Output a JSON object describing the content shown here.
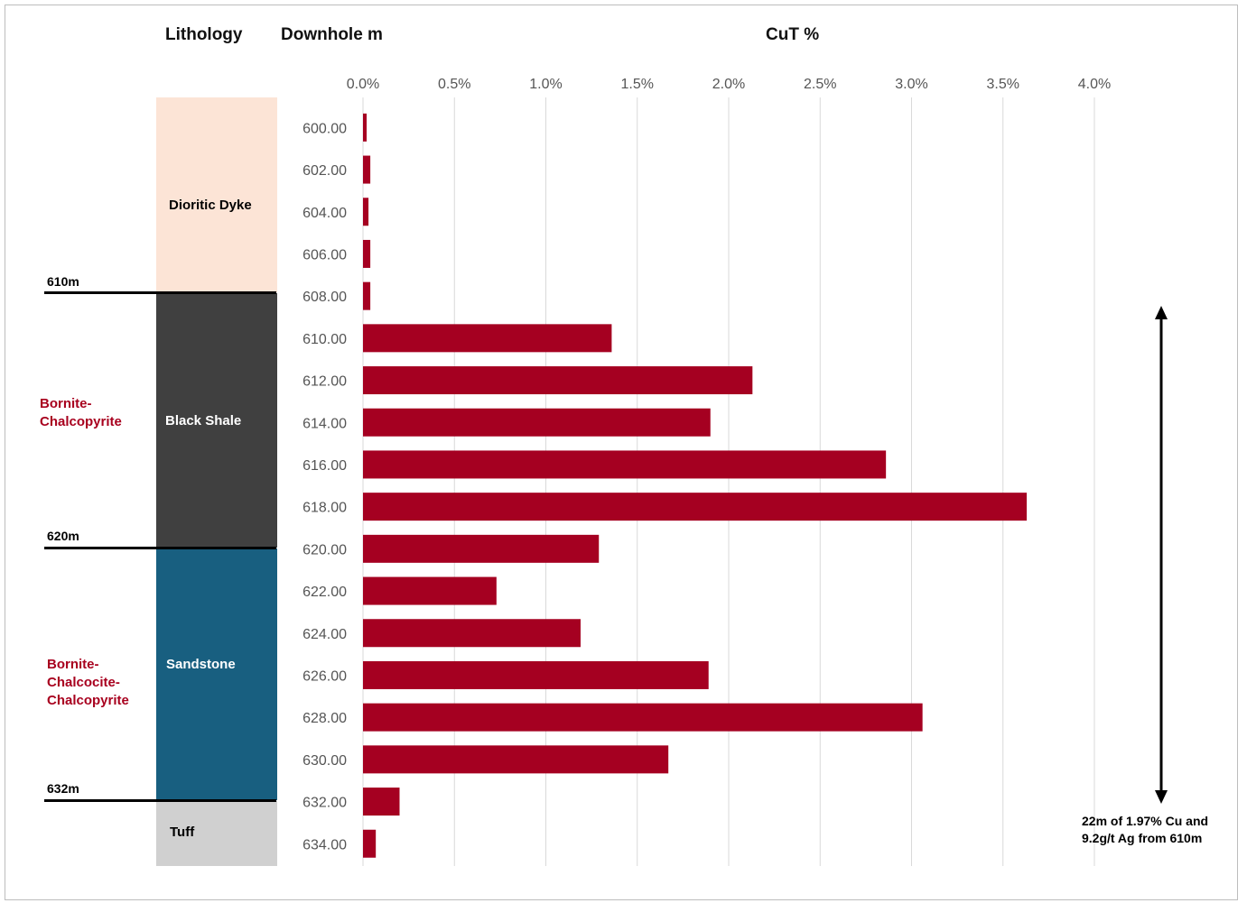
{
  "headers": {
    "lithology": "Lithology",
    "downhole": "Downhole m",
    "cut": "CuT %"
  },
  "lithology_units": [
    {
      "name": "Dioritic Dyke",
      "color": "#fce4d6",
      "text_color": "#000000"
    },
    {
      "name": "Black Shale",
      "color": "#404040",
      "text_color": "#ffffff"
    },
    {
      "name": "Sandstone",
      "color": "#185f80",
      "text_color": "#ffffff"
    },
    {
      "name": "Tuff",
      "color": "#d0d0d0",
      "text_color": "#000000"
    }
  ],
  "depth_markers": [
    "610m",
    "620m",
    "632m"
  ],
  "mineralization": [
    {
      "lines": [
        "Bornite-",
        "Chalcopyrite"
      ]
    },
    {
      "lines": [
        "Bornite-",
        "Chalcocite-",
        "Chalcopyrite"
      ]
    }
  ],
  "intercept_note": [
    "22m of 1.97% Cu and",
    "9.2g/t Ag from 610m"
  ],
  "colors": {
    "bar": "#a50021",
    "grid": "#d9d9d9"
  },
  "chart_data": {
    "type": "bar",
    "orientation": "horizontal",
    "title": "CuT %",
    "ylabel": "Downhole m",
    "xlabel": "",
    "xlim": [
      0,
      4.0
    ],
    "xticks": [
      "0.0%",
      "0.5%",
      "1.0%",
      "1.5%",
      "2.0%",
      "2.5%",
      "3.0%",
      "3.5%",
      "4.0%"
    ],
    "grid": true,
    "categories": [
      "600.00",
      "602.00",
      "604.00",
      "606.00",
      "608.00",
      "610.00",
      "612.00",
      "614.00",
      "616.00",
      "618.00",
      "620.00",
      "622.00",
      "624.00",
      "626.00",
      "628.00",
      "630.00",
      "632.00",
      "634.00"
    ],
    "values": [
      0.02,
      0.04,
      0.03,
      0.04,
      0.04,
      1.36,
      2.13,
      1.9,
      2.86,
      3.63,
      1.29,
      0.73,
      1.19,
      1.89,
      3.06,
      1.67,
      0.2,
      0.07
    ]
  }
}
